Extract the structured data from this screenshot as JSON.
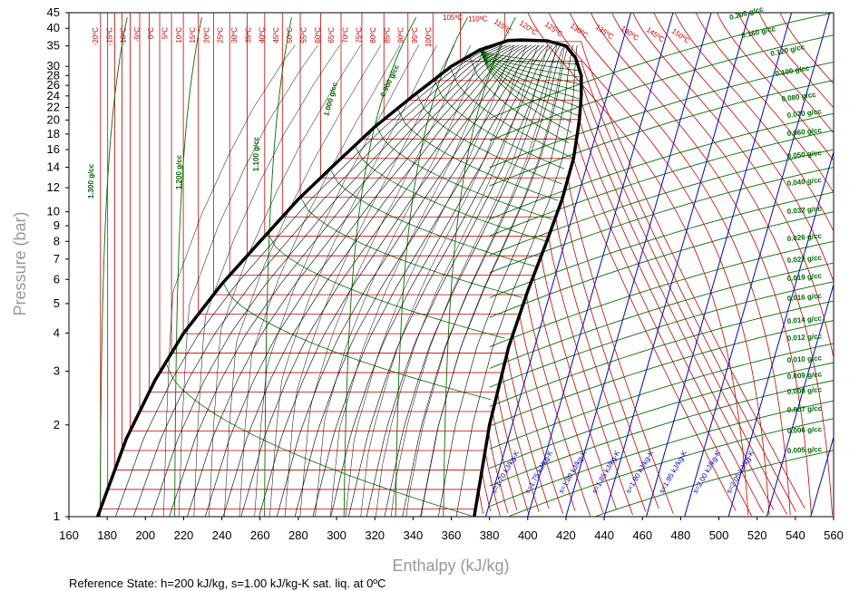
{
  "chart_data": {
    "type": "line",
    "xlabel": "Enthalpy (kJ/kg)",
    "ylabel": "Pressure (bar)",
    "xlim": [
      160,
      560
    ],
    "ylim": [
      1,
      45
    ],
    "y_scale": "log",
    "x_ticks": [
      "160",
      "180",
      "200",
      "220",
      "240",
      "260",
      "280",
      "300",
      "320",
      "340",
      "360",
      "380",
      "400",
      "420",
      "440",
      "460",
      "480",
      "500",
      "520",
      "540",
      "560"
    ],
    "y_ticks": [
      "1",
      "2",
      "3",
      "4",
      "5",
      "6",
      "7",
      "8",
      "9",
      "10",
      "12",
      "14",
      "16",
      "18",
      "20",
      "22",
      "24",
      "26",
      "28",
      "30",
      "35",
      "40",
      "45"
    ],
    "reference_note": "Reference State:    h=200 kJ/kg, s=1.00 kJ/kg-K   sat. liq. at 0ºC",
    "grid": false,
    "colors": {
      "saturation": "#000000",
      "isotherm": "#cc0000",
      "density": "#007000",
      "entropy": "#0000cc",
      "quality": "#000000"
    },
    "saturation_dome": {
      "liquid": [
        {
          "h": 175,
          "p": 1
        },
        {
          "h": 190,
          "p": 1.8
        },
        {
          "h": 205,
          "p": 2.8
        },
        {
          "h": 220,
          "p": 4
        },
        {
          "h": 240,
          "p": 5.8
        },
        {
          "h": 260,
          "p": 8
        },
        {
          "h": 280,
          "p": 11
        },
        {
          "h": 300,
          "p": 14.5
        },
        {
          "h": 320,
          "p": 19
        },
        {
          "h": 340,
          "p": 24
        },
        {
          "h": 360,
          "p": 30
        },
        {
          "h": 375,
          "p": 34
        },
        {
          "h": 390,
          "p": 36.5
        }
      ],
      "vapor": [
        {
          "h": 372,
          "p": 1
        },
        {
          "h": 380,
          "p": 2
        },
        {
          "h": 390,
          "p": 3.6
        },
        {
          "h": 400,
          "p": 5.5
        },
        {
          "h": 410,
          "p": 8
        },
        {
          "h": 418,
          "p": 11
        },
        {
          "h": 424,
          "p": 15
        },
        {
          "h": 427,
          "p": 20
        },
        {
          "h": 428,
          "p": 24
        },
        {
          "h": 428,
          "p": 28
        },
        {
          "h": 425,
          "p": 32
        },
        {
          "h": 420,
          "p": 35
        },
        {
          "h": 410,
          "p": 36.4
        },
        {
          "h": 397,
          "p": 36.6
        }
      ]
    },
    "isotherm_labels": [
      "-20ºC",
      "-15ºC",
      "-10ºC",
      "-5ºC",
      "0ºC",
      "5ºC",
      "10ºC",
      "15ºC",
      "20ºC",
      "25ºC",
      "30ºC",
      "35ºC",
      "40ºC",
      "45ºC",
      "50ºC",
      "55ºC",
      "60ºC",
      "65ºC",
      "70ºC",
      "75ºC",
      "80ºC",
      "85ºC",
      "90ºC",
      "95ºC",
      "100ºC",
      "105ºC",
      "110ºC",
      "115ºC",
      "120ºC",
      "125ºC",
      "130ºC",
      "135ºC",
      "140ºC",
      "145ºC",
      "150ºC"
    ],
    "density_labels": [
      "1.300 g/cc",
      "1.200 g/cc",
      "1.100 g/cc",
      "1.000 g/cc",
      "0.900 g/cc",
      "0.200 g/cc",
      "0.160 g/cc",
      "0.120 g/cc",
      "0.100 g/cc",
      "0.080 g/cc",
      "0.070 g/cc",
      "0.060 g/cc",
      "0.050 g/cc",
      "0.040 g/cc",
      "0.032 g/cc",
      "0.026 g/cc",
      "0.022 g/cc",
      "0.019 g/cc",
      "0.016 g/cc",
      "0.014 g/cc",
      "0.012 g/cc",
      "0.010 g/cc",
      "0.009 g/cc",
      "0.008 g/cc",
      "0.007 g/cc",
      "0.006 g/cc",
      "0.005 g/cc"
    ],
    "entropy_labels": [
      "s=1.70 kJ/kg-K",
      "s=1.75 kJ/kg-K",
      "s=1.80 kJ/kg-K",
      "s=1.85 kJ/kg-K",
      "s=1.90 kJ/kg-K",
      "s=1.95 kJ/kg-K",
      "s=2.00 kJ/kg-K",
      "s=2.05 kJ/kg-K"
    ]
  }
}
